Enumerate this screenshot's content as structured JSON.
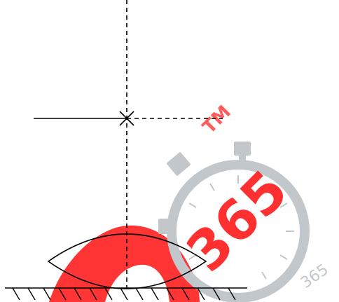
{
  "watermark": {
    "brand_number": "365",
    "trademark": "TM",
    "small_text": "365",
    "red_color": "#ff1a1a",
    "grey_color": "#c2c7cc",
    "light_red_color": "#ffe2e2"
  }
}
